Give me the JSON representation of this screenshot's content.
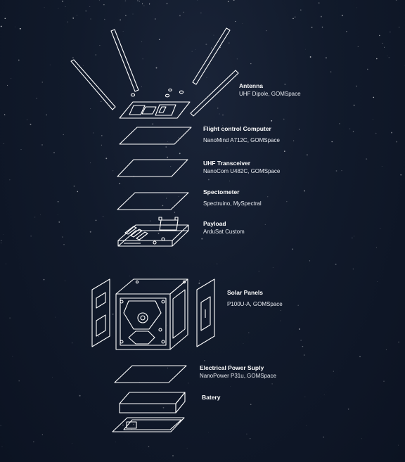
{
  "components": [
    {
      "name": "Antenna",
      "detail": "UHF Dipole, GOMSpace"
    },
    {
      "name": "Flight control Computer",
      "detail": "NanoMind A712C, GOMSpace"
    },
    {
      "name": "UHF Transceiver",
      "detail": "NanoCom U482C, GOMSpace"
    },
    {
      "name": "Spectometer",
      "detail": "Spectruino, MySpectral"
    },
    {
      "name": "Payload",
      "detail": "ArduSat Custom"
    },
    {
      "name": "Solar Panels",
      "detail": "P100U-A, GOMSpace"
    },
    {
      "name": "Electrical Power Suply",
      "detail": "NanoPower P31u, GOMSpace"
    },
    {
      "name": "Batery",
      "detail": ""
    }
  ],
  "colors": {
    "background": "#111a2b",
    "line": "#ffffff"
  }
}
